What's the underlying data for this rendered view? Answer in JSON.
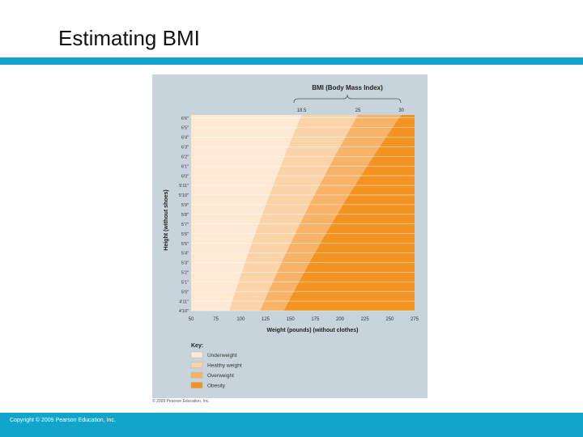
{
  "slide": {
    "title": "Estimating BMI",
    "footer": "Copyright © 2009 Pearson Education, Inc.",
    "figure_credit": "© 2009 Pearson Education, Inc.",
    "accent_color": "#12a5cc"
  },
  "chart_data": {
    "type": "area",
    "title": "BMI (Body Mass Index)",
    "xlabel": "Weight (pounds) (without clothes)",
    "ylabel": "Height (without shoes)",
    "xlim": [
      50,
      275
    ],
    "x_ticks": [
      "50",
      "75",
      "100",
      "125",
      "150",
      "175",
      "200",
      "225",
      "250",
      "275"
    ],
    "y_ticks": [
      "4'10\"",
      "4'11\"",
      "5'0\"",
      "5'1\"",
      "5'2\"",
      "5'3\"",
      "5'4\"",
      "5'5\"",
      "5'6\"",
      "5'7\"",
      "5'8\"",
      "5'9\"",
      "5'10\"",
      "5'11\"",
      "6'0\"",
      "6'1\"",
      "6'2\"",
      "6'3\"",
      "6'4\"",
      "6'5\"",
      "6'6\""
    ],
    "y_ticks_inches": [
      58,
      59,
      60,
      61,
      62,
      63,
      64,
      65,
      66,
      67,
      68,
      69,
      70,
      71,
      72,
      73,
      74,
      75,
      76,
      77,
      78
    ],
    "bmi_thresholds": [
      "18.5",
      "25",
      "30"
    ],
    "bmi_threshold_values": [
      18.5,
      25,
      30
    ],
    "key_title": "Key:",
    "categories": [
      {
        "label": "Underweight",
        "color": "#fde9d4"
      },
      {
        "label": "Healthy weight",
        "color": "#fbd3a8"
      },
      {
        "label": "Overweight",
        "color": "#f7b469"
      },
      {
        "label": "Obesity",
        "color": "#f39422"
      }
    ]
  }
}
